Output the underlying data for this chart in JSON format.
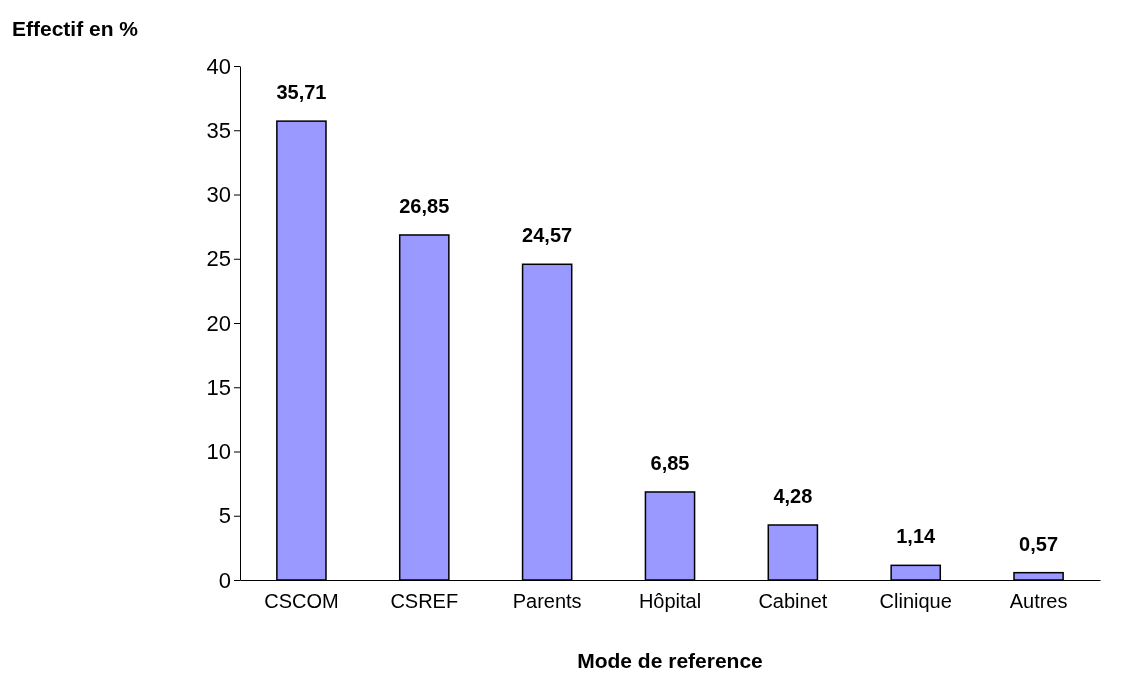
{
  "chart_data": {
    "type": "bar",
    "ylabel": "Effectif en %",
    "xlabel": "Mode de reference",
    "categories": [
      "CSCOM",
      "CSREF",
      "Parents",
      "Hôpital",
      "Cabinet",
      "Clinique",
      "Autres"
    ],
    "values": [
      35.71,
      26.85,
      24.57,
      6.85,
      4.28,
      1.14,
      0.57
    ],
    "value_labels": [
      "35,71",
      "26,85",
      "24,57",
      "6,85",
      "4,28",
      "1,14",
      "0,57"
    ],
    "color": "#9999ff",
    "ylim": [
      0,
      40
    ],
    "yticks": [
      0,
      5,
      10,
      15,
      20,
      25,
      30,
      35,
      40
    ],
    "grid": false
  }
}
